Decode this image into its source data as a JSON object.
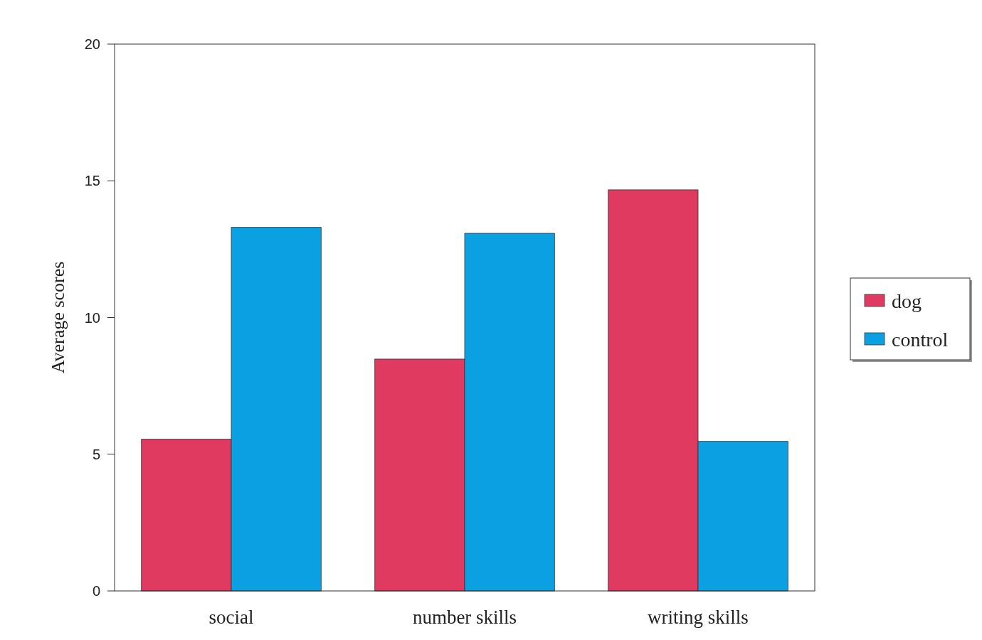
{
  "chart_data": {
    "type": "bar",
    "ylabel": "Average scores",
    "categories": [
      "social",
      "number skills",
      "writing skills"
    ],
    "series": [
      {
        "name": "dog",
        "color": "#e03a60",
        "values": [
          5.55,
          8.48,
          14.67
        ]
      },
      {
        "name": "control",
        "color": "#0aa0e2",
        "values": [
          13.3,
          13.08,
          5.47
        ]
      }
    ],
    "ylim": [
      0,
      20
    ],
    "yticks": [
      0,
      5,
      10,
      15,
      20
    ],
    "legend": "right"
  }
}
